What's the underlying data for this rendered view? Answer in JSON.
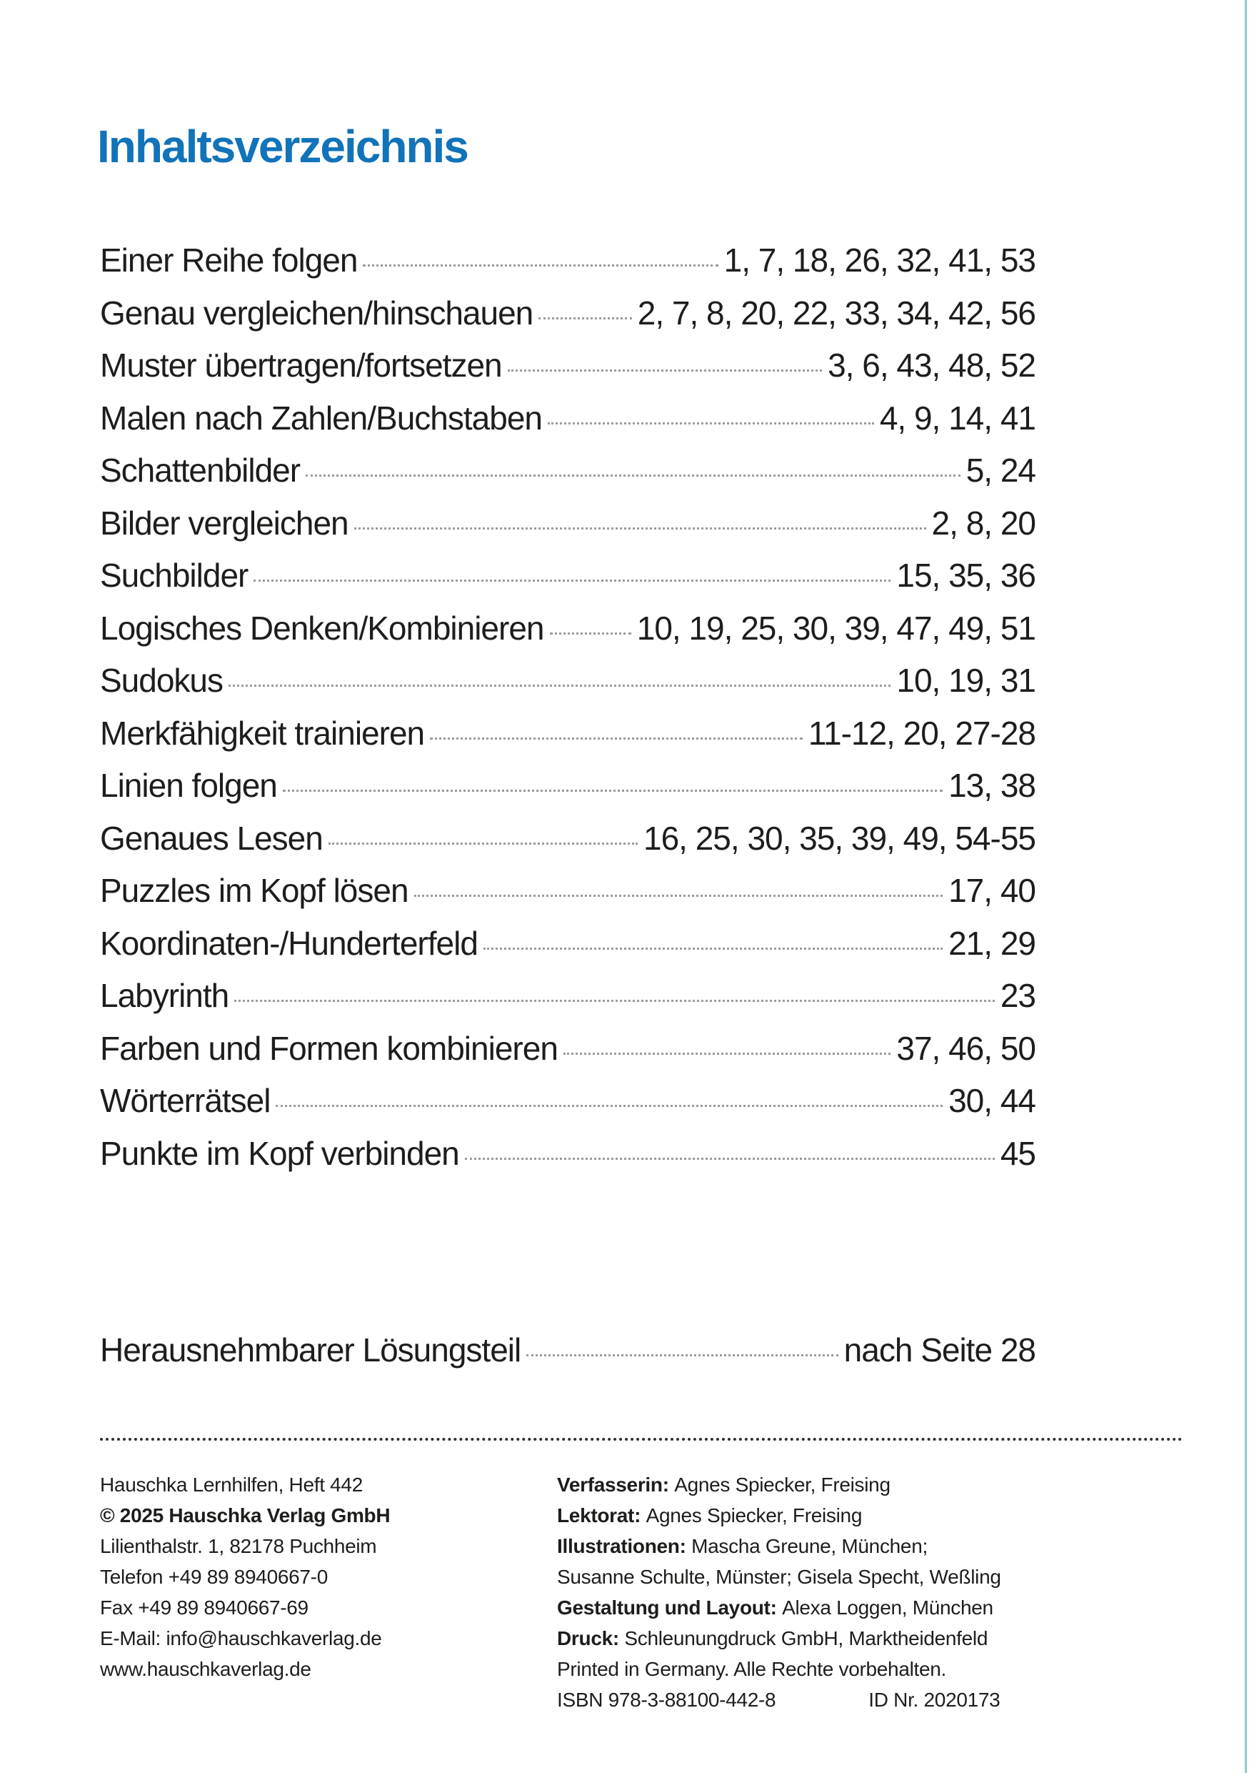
{
  "heading": "Inhaltsverzeichnis",
  "colors": {
    "heading-blue": "#1173b9",
    "edge-teal": "#8fcccb",
    "text": "#1d1d1b",
    "leader-grey": "#9b9b9b"
  },
  "toc": {
    "entries": [
      {
        "title": "Einer Reihe folgen",
        "pages": "1, 7, 18, 26, 32, 41, 53"
      },
      {
        "title": "Genau vergleichen/hinschauen",
        "pages": "2, 7, 8, 20, 22, 33, 34, 42, 56"
      },
      {
        "title": "Muster übertragen/fortsetzen",
        "pages": "3, 6, 43, 48, 52"
      },
      {
        "title": "Malen nach Zahlen/Buchstaben",
        "pages": "4, 9, 14, 41"
      },
      {
        "title": "Schattenbilder",
        "pages": "5, 24"
      },
      {
        "title": "Bilder vergleichen",
        "pages": "2, 8, 20"
      },
      {
        "title": "Suchbilder",
        "pages": "15, 35, 36"
      },
      {
        "title": "Logisches Denken/Kombinieren",
        "pages": "10, 19, 25, 30, 39, 47, 49, 51"
      },
      {
        "title": "Sudokus",
        "pages": "10, 19, 31"
      },
      {
        "title": "Merkfähigkeit trainieren",
        "pages": "11-12, 20, 27-28"
      },
      {
        "title": "Linien folgen",
        "pages": "13, 38"
      },
      {
        "title": "Genaues Lesen",
        "pages": "16, 25, 30, 35, 39, 49, 54-55"
      },
      {
        "title": "Puzzles im Kopf lösen",
        "pages": "17, 40"
      },
      {
        "title": "Koordinaten-/Hunderterfeld",
        "pages": "21, 29"
      },
      {
        "title": "Labyrinth",
        "pages": "23"
      },
      {
        "title": "Farben und Formen kombinieren",
        "pages": "37, 46, 50"
      },
      {
        "title": "Wörterrätsel",
        "pages": "30, 44"
      },
      {
        "title": "Punkte im Kopf verbinden",
        "pages": "45"
      }
    ],
    "solutions": {
      "title": "Herausnehmbarer Lösungsteil",
      "pages": "nach Seite 28"
    }
  },
  "footer": {
    "left": [
      "Hauschka Lernhilfen, Heft 442",
      "© 2025 Hauschka Verlag GmbH",
      "Lilienthalstr. 1, 82178 Puchheim",
      "Telefon +49 89 8940667-0",
      "Fax +49 89 8940667-69",
      "E-Mail: info@hauschkaverlag.de",
      "www.hauschkaverlag.de"
    ],
    "right": [
      {
        "label": "Verfasserin: ",
        "text": "Agnes Spiecker, Freising"
      },
      {
        "label": "Lektorat: ",
        "text": "Agnes Spiecker, Freising"
      },
      {
        "label": "Illustrationen: ",
        "text": "Mascha Greune, München;"
      },
      {
        "label": "",
        "text": "Susanne Schulte, Münster; Gisela Specht, Weßling"
      },
      {
        "label": "Gestaltung und Layout: ",
        "text": "Alexa Loggen, München"
      },
      {
        "label": "Druck: ",
        "text": "Schleunungdruck GmbH, Marktheidenfeld"
      },
      {
        "label": "",
        "text": "Printed in Germany. Alle Rechte vorbehalten."
      }
    ],
    "isbn": "ISBN 978-3-88100-442-8",
    "id_nr": "ID Nr. 2020173"
  }
}
